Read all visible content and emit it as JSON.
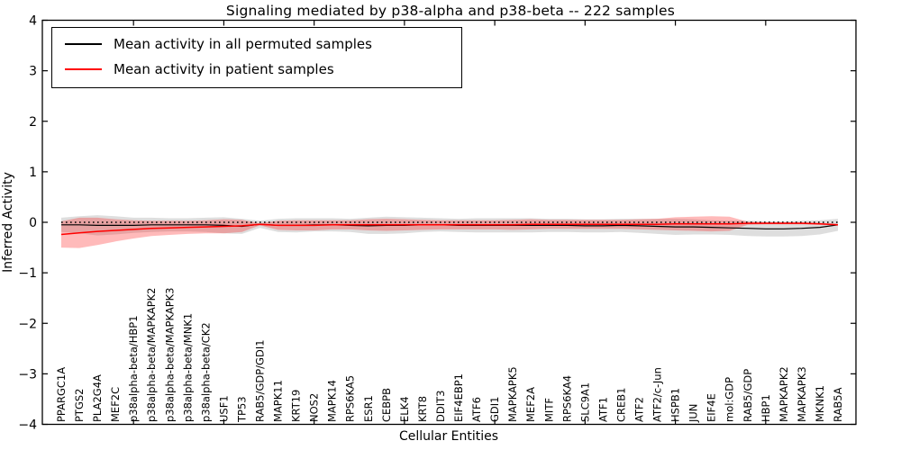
{
  "chart_data": {
    "type": "line",
    "title": "Signaling mediated by p38-alpha and p38-beta -- 222 samples",
    "xlabel": "Cellular Entities",
    "ylabel": "Inferred Activity",
    "ylim": [
      -4,
      4
    ],
    "yticks": [
      4,
      3,
      2,
      1,
      0,
      -1,
      -2,
      -3,
      -4
    ],
    "ytick_labels": [
      "4",
      "3",
      "2",
      "1",
      "0",
      "−1",
      "−2",
      "−3",
      "−4"
    ],
    "grid": false,
    "legend_position": "upper left",
    "x_major_tick_every": 5,
    "reference_line": {
      "y": 0,
      "style": "dotted",
      "color": "#000000"
    },
    "categories": [
      "PPARGC1A",
      "PTGS2",
      "PLA2G4A",
      "MEF2C",
      "p38alpha-beta/HBP1",
      "p38alpha-beta/MAPKAPK2",
      "p38alpha-beta/MAPKAPK3",
      "p38alpha-beta/MNK1",
      "p38alpha-beta/CK2",
      "USF1",
      "TP53",
      "RAB5/GDP/GDI1",
      "MAPK11",
      "KRT19",
      "NOS2",
      "MAPK14",
      "RPS6KA5",
      "ESR1",
      "CEBPB",
      "ELK4",
      "KRT8",
      "DDIT3",
      "EIF4EBP1",
      "ATF6",
      "GDI1",
      "MAPKAPK5",
      "MEF2A",
      "MITF",
      "RPS6KA4",
      "SLC9A1",
      "ATF1",
      "CREB1",
      "ATF2",
      "ATF2/c-Jun",
      "HSPB1",
      "JUN",
      "EIF4E",
      "mol:GDP",
      "RAB5/GDP",
      "HBP1",
      "MAPKAPK2",
      "MAPKAPK3",
      "MKNK1",
      "RAB5A"
    ],
    "series": [
      {
        "id": "permuted",
        "name": "Mean activity in all permuted samples",
        "color": "#000000",
        "line_width": 1.2,
        "band_fill": "rgba(0,0,0,0.13)",
        "mean": [
          -0.05,
          -0.05,
          -0.06,
          -0.06,
          -0.06,
          -0.05,
          -0.05,
          -0.05,
          -0.05,
          -0.06,
          -0.08,
          -0.04,
          -0.06,
          -0.06,
          -0.05,
          -0.05,
          -0.06,
          -0.07,
          -0.06,
          -0.06,
          -0.05,
          -0.05,
          -0.06,
          -0.06,
          -0.06,
          -0.06,
          -0.06,
          -0.06,
          -0.06,
          -0.07,
          -0.07,
          -0.06,
          -0.07,
          -0.08,
          -0.09,
          -0.09,
          -0.1,
          -0.11,
          -0.12,
          -0.13,
          -0.13,
          -0.12,
          -0.1,
          -0.05
        ],
        "std": [
          0.14,
          0.17,
          0.2,
          0.18,
          0.15,
          0.14,
          0.13,
          0.13,
          0.14,
          0.16,
          0.15,
          0.07,
          0.13,
          0.14,
          0.13,
          0.13,
          0.13,
          0.16,
          0.17,
          0.16,
          0.14,
          0.13,
          0.13,
          0.14,
          0.14,
          0.14,
          0.14,
          0.13,
          0.13,
          0.13,
          0.13,
          0.13,
          0.14,
          0.15,
          0.16,
          0.15,
          0.14,
          0.14,
          0.15,
          0.15,
          0.15,
          0.15,
          0.14,
          0.12
        ]
      },
      {
        "id": "patient",
        "name": "Mean activity in patient samples",
        "color": "#ff0000",
        "line_width": 1.5,
        "band_fill": "rgba(255,0,0,0.27)",
        "mean": [
          -0.24,
          -0.21,
          -0.18,
          -0.16,
          -0.14,
          -0.12,
          -0.11,
          -0.1,
          -0.09,
          -0.08,
          -0.07,
          -0.04,
          -0.06,
          -0.06,
          -0.06,
          -0.05,
          -0.05,
          -0.05,
          -0.05,
          -0.05,
          -0.05,
          -0.05,
          -0.05,
          -0.05,
          -0.05,
          -0.05,
          -0.04,
          -0.04,
          -0.04,
          -0.04,
          -0.04,
          -0.04,
          -0.04,
          -0.04,
          -0.03,
          -0.03,
          -0.03,
          -0.03,
          -0.02,
          -0.02,
          -0.02,
          -0.02,
          -0.03,
          -0.05
        ],
        "std": [
          0.26,
          0.3,
          0.27,
          0.22,
          0.18,
          0.15,
          0.14,
          0.13,
          0.13,
          0.14,
          0.12,
          0.02,
          0.09,
          0.1,
          0.1,
          0.09,
          0.09,
          0.11,
          0.12,
          0.11,
          0.1,
          0.09,
          0.09,
          0.09,
          0.09,
          0.1,
          0.1,
          0.09,
          0.09,
          0.09,
          0.09,
          0.09,
          0.1,
          0.11,
          0.13,
          0.14,
          0.15,
          0.14,
          0.03,
          0.02,
          0.02,
          0.02,
          0.02,
          0.02
        ]
      }
    ]
  }
}
